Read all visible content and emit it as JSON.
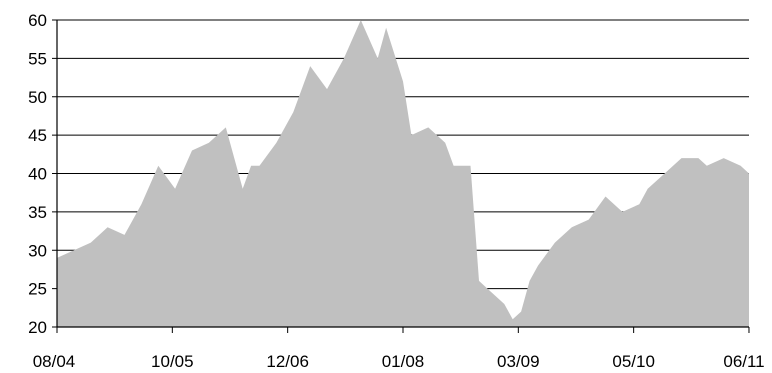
{
  "chart_data": {
    "type": "area",
    "title": "",
    "xlabel": "",
    "ylabel": "",
    "ylim": [
      20,
      60
    ],
    "yticks": [
      20,
      25,
      30,
      35,
      40,
      45,
      50,
      55,
      60
    ],
    "xtick_labels": [
      "08/04",
      "10/05",
      "12/06",
      "01/08",
      "03/09",
      "05/10",
      "06/11"
    ],
    "grid": "horizontal",
    "legend": "none",
    "colors": {
      "fill": "#c0c0c0",
      "grid": "#000000",
      "axis": "#000000"
    },
    "series": [
      {
        "x": [
          "2004-08",
          "2004-10",
          "2004-12",
          "2005-02",
          "2005-04",
          "2005-06",
          "2005-08",
          "2005-10",
          "2005-12",
          "2006-02",
          "2006-04",
          "2006-06",
          "2006-07",
          "2006-08",
          "2006-10",
          "2006-12",
          "2007-02",
          "2007-04",
          "2007-06",
          "2007-08",
          "2007-10",
          "2007-11",
          "2008-01",
          "2008-02",
          "2008-04",
          "2008-06",
          "2008-07",
          "2008-09",
          "2008-10",
          "2008-11",
          "2008-12",
          "2009-01",
          "2009-02",
          "2009-03",
          "2009-04",
          "2009-05",
          "2009-07",
          "2009-09",
          "2009-11",
          "2010-01",
          "2010-03",
          "2010-05",
          "2010-06",
          "2010-08",
          "2010-10",
          "2010-12",
          "2011-01",
          "2011-03",
          "2011-05",
          "2011-06"
        ],
        "values": [
          29,
          30,
          31,
          33,
          32,
          36,
          41,
          38,
          43,
          44,
          46,
          38,
          41,
          41,
          44,
          48,
          54,
          51,
          55,
          60,
          55,
          59,
          52,
          45,
          46,
          44,
          41,
          41,
          26,
          25,
          24,
          23,
          21,
          22,
          26,
          28,
          31,
          33,
          34,
          37,
          35,
          36,
          38,
          40,
          42,
          42,
          41,
          42,
          41,
          40
        ]
      }
    ]
  }
}
